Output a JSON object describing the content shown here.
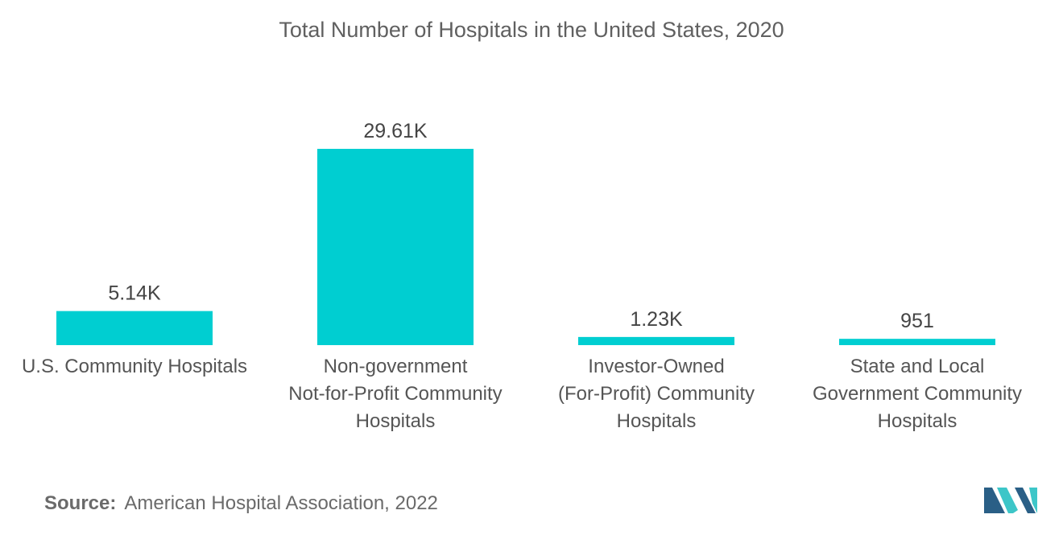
{
  "chart_data": {
    "type": "bar",
    "title": "Total Number of Hospitals in the United States, 2020",
    "categories": [
      [
        "U.S. Community  Hospitals"
      ],
      [
        "Non-government",
        "Not-for-Profit Community",
        "Hospitals"
      ],
      [
        "Investor-Owned",
        "(For-Profit) Community",
        "Hospitals"
      ],
      [
        "State and Local",
        "Government Community",
        "Hospitals"
      ]
    ],
    "values": [
      5140,
      29610,
      1230,
      951
    ],
    "data_labels": [
      "5.14K",
      "29.61K",
      "1.23K",
      "951"
    ],
    "xlabel": "",
    "ylabel": "",
    "ylim": [
      0,
      29610
    ],
    "grid": false,
    "bar_color": "#00CED1"
  },
  "source": {
    "label": "Source:",
    "text": "American Hospital Association, 2022"
  },
  "logo": {
    "icon": "mordor-intelligence-logo",
    "colors": [
      "#2a5f86",
      "#3dc6c8"
    ]
  }
}
